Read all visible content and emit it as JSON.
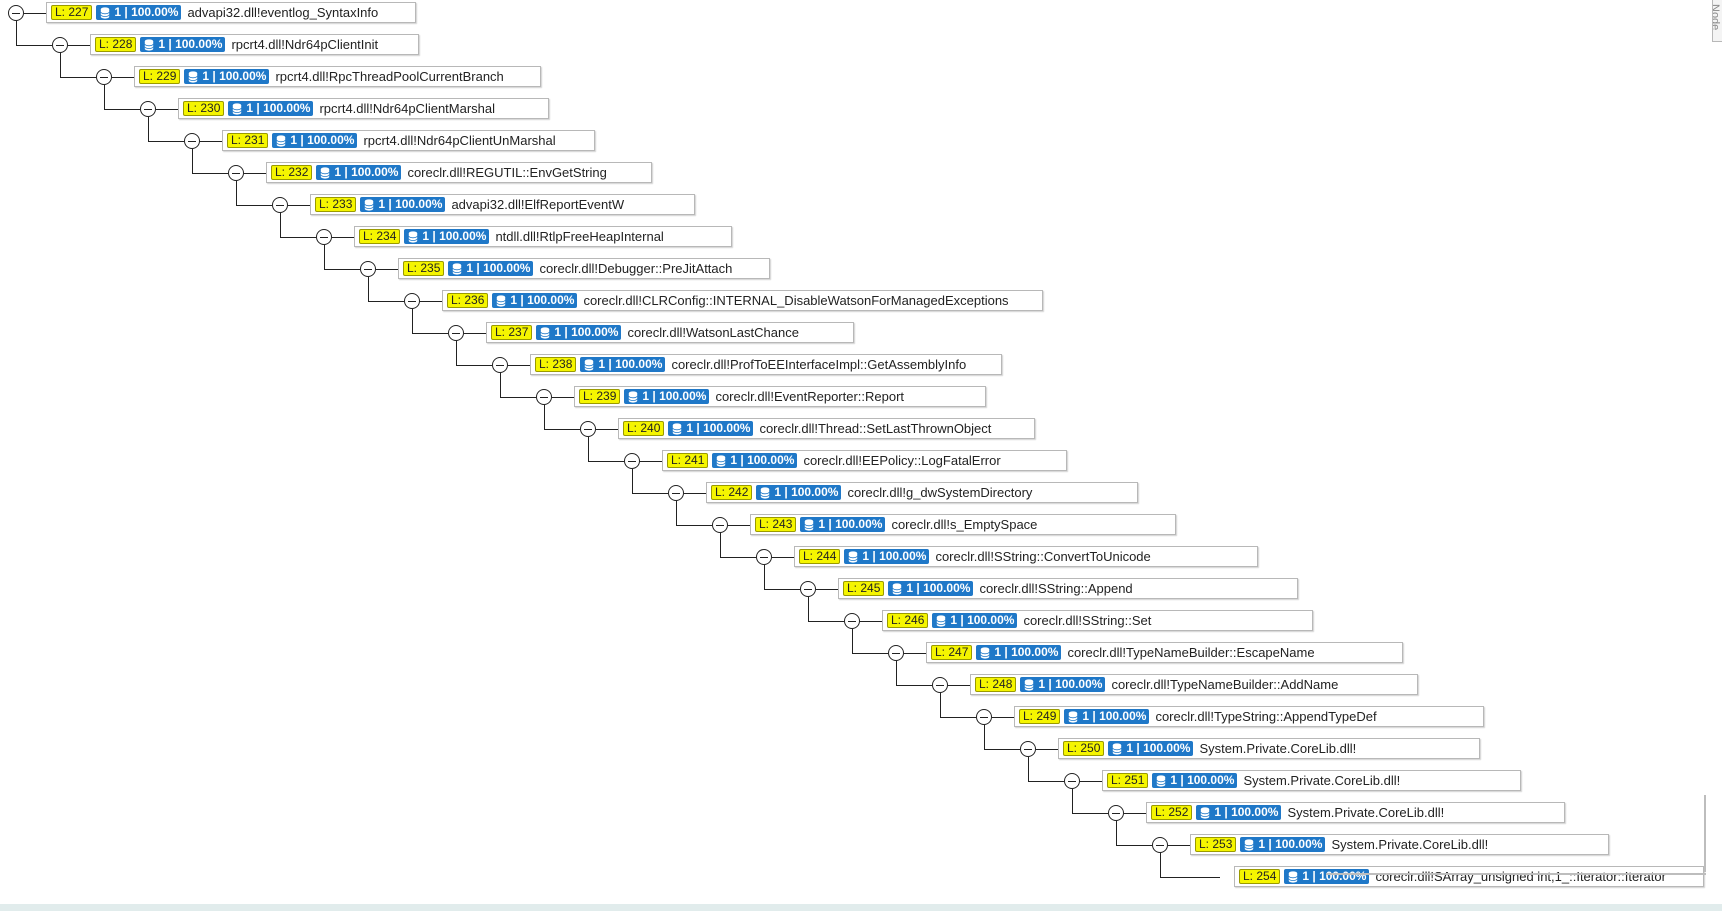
{
  "side_tab": {
    "label": "Node"
  },
  "nodes": [
    {
      "level": "L: 227",
      "count": "1 | 100.00%",
      "function": "advapi32.dll!eventlog_SyntaxInfo"
    },
    {
      "level": "L: 228",
      "count": "1 | 100.00%",
      "function": "rpcrt4.dll!Ndr64pClientInit"
    },
    {
      "level": "L: 229",
      "count": "1 | 100.00%",
      "function": "rpcrt4.dll!RpcThreadPoolCurrentBranch"
    },
    {
      "level": "L: 230",
      "count": "1 | 100.00%",
      "function": "rpcrt4.dll!Ndr64pClientMarshal"
    },
    {
      "level": "L: 231",
      "count": "1 | 100.00%",
      "function": "rpcrt4.dll!Ndr64pClientUnMarshal"
    },
    {
      "level": "L: 232",
      "count": "1 | 100.00%",
      "function": "coreclr.dll!REGUTIL::EnvGetString"
    },
    {
      "level": "L: 233",
      "count": "1 | 100.00%",
      "function": "advapi32.dll!ElfReportEventW"
    },
    {
      "level": "L: 234",
      "count": "1 | 100.00%",
      "function": "ntdll.dll!RtlpFreeHeapInternal"
    },
    {
      "level": "L: 235",
      "count": "1 | 100.00%",
      "function": "coreclr.dll!Debugger::PreJitAttach"
    },
    {
      "level": "L: 236",
      "count": "1 | 100.00%",
      "function": "coreclr.dll!CLRConfig::INTERNAL_DisableWatsonForManagedExceptions"
    },
    {
      "level": "L: 237",
      "count": "1 | 100.00%",
      "function": "coreclr.dll!WatsonLastChance"
    },
    {
      "level": "L: 238",
      "count": "1 | 100.00%",
      "function": "coreclr.dll!ProfToEEInterfaceImpl::GetAssemblyInfo"
    },
    {
      "level": "L: 239",
      "count": "1 | 100.00%",
      "function": "coreclr.dll!EventReporter::Report"
    },
    {
      "level": "L: 240",
      "count": "1 | 100.00%",
      "function": "coreclr.dll!Thread::SetLastThrownObject"
    },
    {
      "level": "L: 241",
      "count": "1 | 100.00%",
      "function": "coreclr.dll!EEPolicy::LogFatalError"
    },
    {
      "level": "L: 242",
      "count": "1 | 100.00%",
      "function": "coreclr.dll!g_dwSystemDirectory"
    },
    {
      "level": "L: 243",
      "count": "1 | 100.00%",
      "function": "coreclr.dll!s_EmptySpace"
    },
    {
      "level": "L: 244",
      "count": "1 | 100.00%",
      "function": "coreclr.dll!SString::ConvertToUnicode"
    },
    {
      "level": "L: 245",
      "count": "1 | 100.00%",
      "function": "coreclr.dll!SString::Append"
    },
    {
      "level": "L: 246",
      "count": "1 | 100.00%",
      "function": "coreclr.dll!SString::Set"
    },
    {
      "level": "L: 247",
      "count": "1 | 100.00%",
      "function": "coreclr.dll!TypeNameBuilder::EscapeName"
    },
    {
      "level": "L: 248",
      "count": "1 | 100.00%",
      "function": "coreclr.dll!TypeNameBuilder::AddName"
    },
    {
      "level": "L: 249",
      "count": "1 | 100.00%",
      "function": "coreclr.dll!TypeString::AppendTypeDef"
    },
    {
      "level": "L: 250",
      "count": "1 | 100.00%",
      "function": "System.Private.CoreLib.dll!"
    },
    {
      "level": "L: 251",
      "count": "1 | 100.00%",
      "function": "System.Private.CoreLib.dll!"
    },
    {
      "level": "L: 252",
      "count": "1 | 100.00%",
      "function": "System.Private.CoreLib.dll!"
    },
    {
      "level": "L: 253",
      "count": "1 | 100.00%",
      "function": "System.Private.CoreLib.dll!"
    },
    {
      "level": "L: 254",
      "count": "1 | 100.00%",
      "function": "coreclr.dll!SArray_unsigned int,1_::Iterator::Iterator"
    }
  ],
  "last_node_expandable": false,
  "colors": {
    "level_badge": "#f5f500",
    "count_badge": "#1f78c8",
    "connector": "#222222",
    "node_border": "#b8b8b8"
  },
  "icons": {
    "count": "database-icon",
    "toggle": "collapse-minus-icon"
  }
}
